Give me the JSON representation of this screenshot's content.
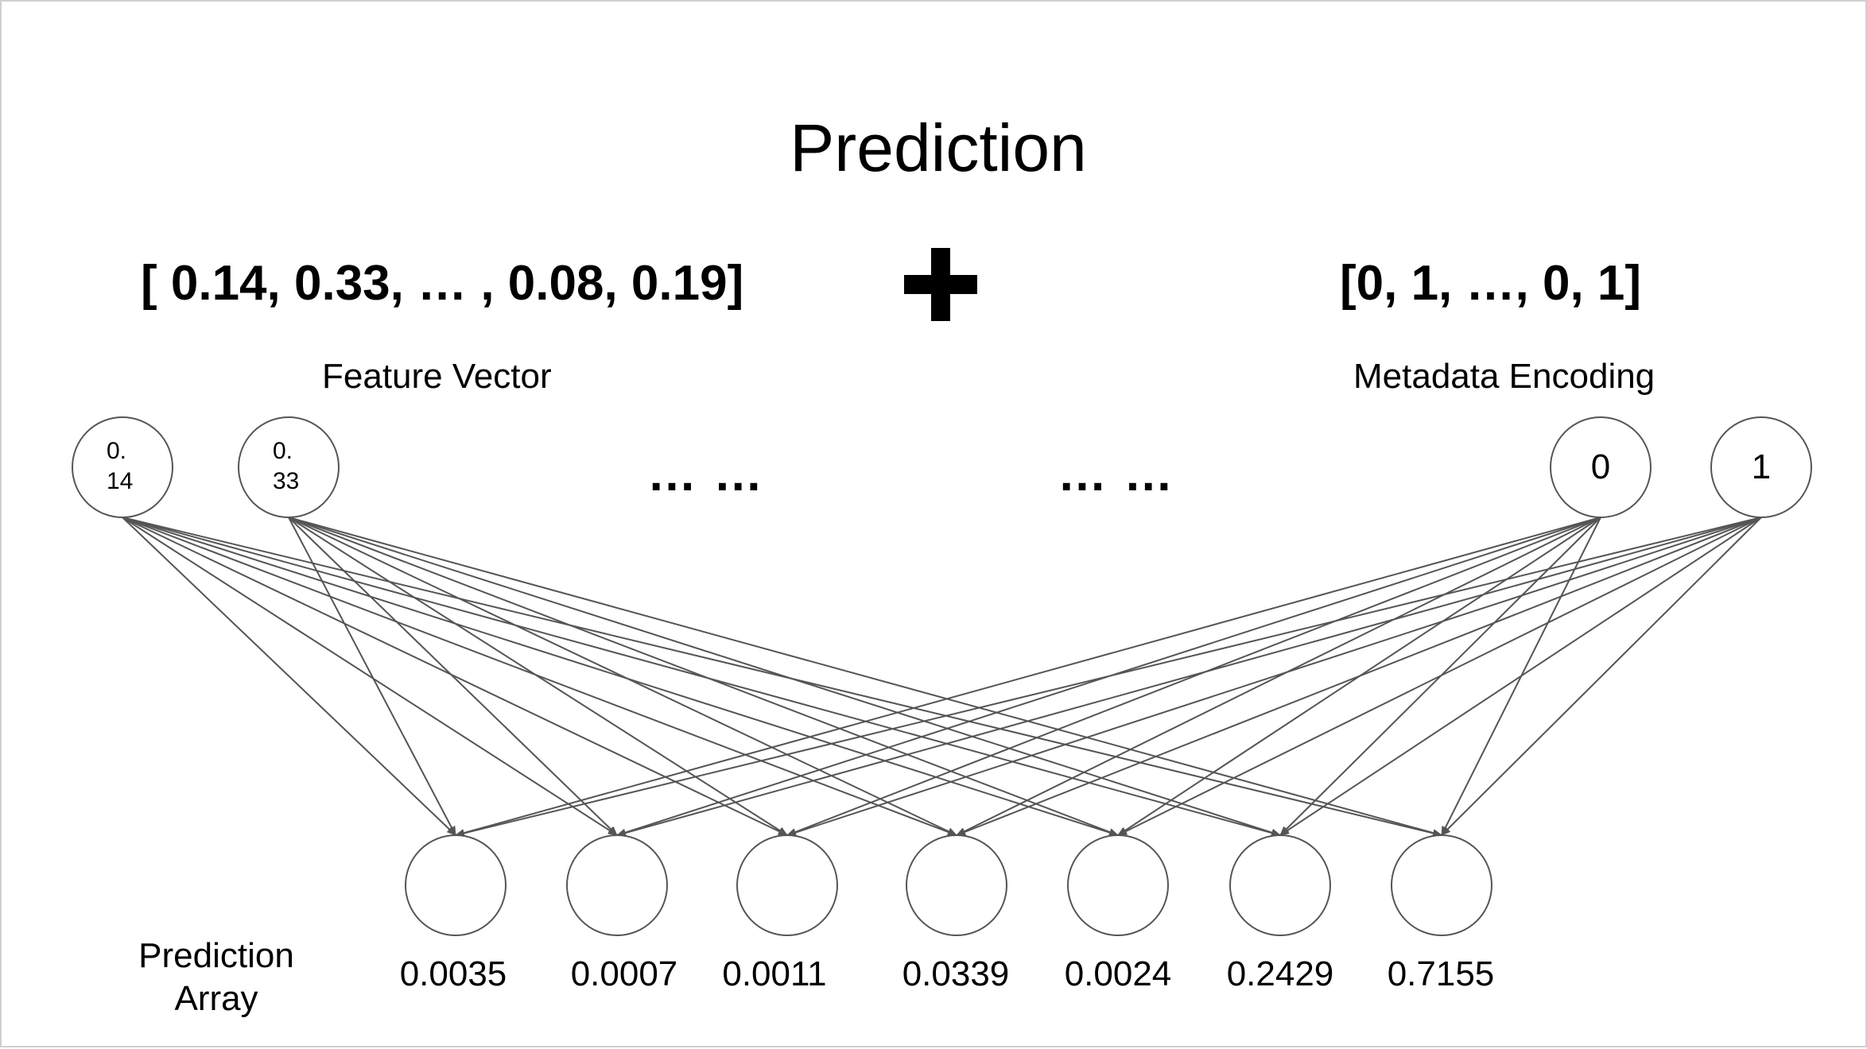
{
  "title": "Prediction",
  "feature_vector": {
    "text": "[ 0.14,  0.33, … , 0.08, 0.19]",
    "label": "Feature Vector",
    "nodes": [
      {
        "line1": "0.",
        "line2": "14"
      },
      {
        "line1": "0.",
        "line2": "33"
      }
    ],
    "ellipsis": "… …"
  },
  "plus_symbol": "+",
  "metadata": {
    "text": "[0, 1, …, 0, 1]",
    "label": "Metadata Encoding",
    "nodes": [
      "0",
      "1"
    ],
    "ellipsis": "… …"
  },
  "prediction": {
    "label": "Prediction Array",
    "values": [
      "0.0035",
      "0.0007",
      "0.0011",
      "0.0339",
      "0.0024",
      "0.2429",
      "0.7155"
    ]
  },
  "colors": {
    "stroke": "#555555",
    "text": "#000000",
    "background": "#ffffff",
    "border": "#cfcfcf"
  }
}
